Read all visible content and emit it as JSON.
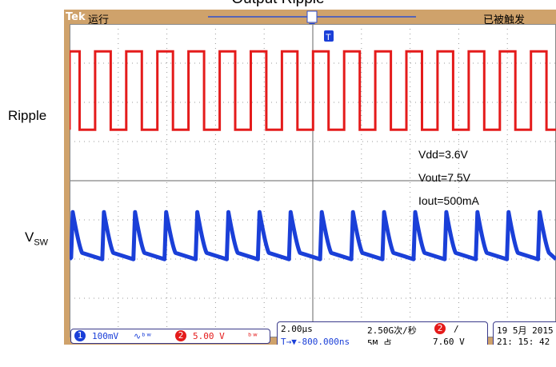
{
  "figure": {
    "title": "Output Ripple",
    "label_ripple": "Ripple",
    "label_vsw_main": "V",
    "label_vsw_sub": "SW"
  },
  "scope": {
    "brand": "Tek",
    "run_state": "运行",
    "trigger_state": "已被触发",
    "trigger_marker": "T",
    "ch1_marker": "1",
    "ch2_marker": "2",
    "annotations": [
      "Vdd=3.6V",
      "Vout=7.5V",
      "Iout=500mA"
    ],
    "ch1": {
      "badge": "1",
      "scale": "100mV",
      "coupling": "∿ᵇʷ"
    },
    "ch2": {
      "badge": "2",
      "scale": "5.00 V",
      "coupling": "ᵇʷ"
    },
    "timebase": {
      "time_div": "2.00µs",
      "sample_rate": "2.50G次/秒",
      "delay": "T→▼-800.000ns",
      "record_length": "5M 点"
    },
    "trigger": {
      "source_badge": "2",
      "slope": "/",
      "level": "7.60 V"
    },
    "datetime": {
      "date": "19 5月  2015",
      "time": "21: 15: 42"
    },
    "colors": {
      "ch1": "#1a3fd8",
      "ch2": "#e41b1b",
      "bezel": "#cfa26b"
    }
  },
  "chart_data": {
    "type": "line",
    "x_divisions": 10,
    "y_divisions": 8,
    "period_divisions": 0.64,
    "series": [
      {
        "name": "Ripple",
        "shape": "square",
        "duty": 0.5,
        "high_div": 7.3,
        "low_div": 5.3
      },
      {
        "name": "V",
        "shape": "sawtooth",
        "peak_div": 3.2,
        "trough_div": 2.2
      }
    ]
  }
}
